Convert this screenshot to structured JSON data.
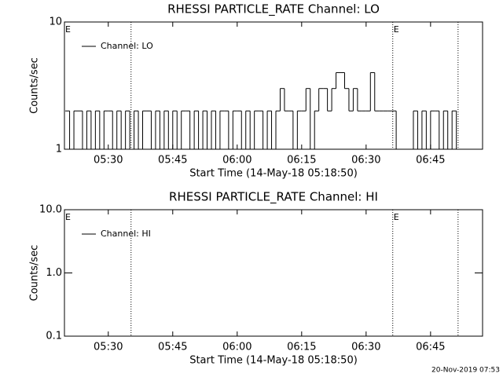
{
  "chart_data": [
    {
      "type": "line",
      "title": "RHESSI PARTICLE_RATE Channel: LO",
      "xlabel": "Start Time (14-May-18 05:18:50)",
      "ylabel": "Counts/sec",
      "log_y": true,
      "step": true,
      "legend": "upper left",
      "xlim": [
        319.8,
        417.1
      ],
      "ylim": [
        1,
        10
      ],
      "xticks": [
        {
          "value": 330,
          "label": "05:30"
        },
        {
          "value": 345,
          "label": "05:45"
        },
        {
          "value": 360,
          "label": "06:00"
        },
        {
          "value": 375,
          "label": "06:15"
        },
        {
          "value": 390,
          "label": "06:30"
        },
        {
          "value": 405,
          "label": "06:45"
        }
      ],
      "yticks": [
        1,
        10
      ],
      "vlines": [
        335.3,
        396.2,
        411.4
      ],
      "annotations": [
        {
          "text": "E",
          "x": 319.8
        },
        {
          "text": "E",
          "x": 396.2
        }
      ],
      "x": [
        320,
        321,
        322,
        323,
        324,
        325,
        326,
        327,
        328,
        329,
        330,
        331,
        332,
        333,
        334,
        335,
        336,
        337,
        338,
        339,
        340,
        341,
        342,
        343,
        344,
        345,
        346,
        347,
        348,
        349,
        350,
        351,
        352,
        353,
        354,
        355,
        356,
        357,
        358,
        359,
        360,
        361,
        362,
        363,
        364,
        365,
        366,
        367,
        368,
        369,
        370,
        371,
        372,
        373,
        374,
        375,
        376,
        377,
        378,
        379,
        380,
        381,
        382,
        383,
        384,
        385,
        386,
        387,
        388,
        389,
        390,
        391,
        392,
        393,
        394,
        395,
        396,
        397,
        398,
        399,
        400,
        401,
        402,
        403,
        404,
        405,
        406,
        407,
        408,
        409,
        410,
        411
      ],
      "series": [
        {
          "name": "Channel: LO",
          "color": "#000000",
          "values": [
            2,
            1,
            2,
            2,
            1,
            2,
            1,
            2,
            1,
            2,
            2,
            1,
            2,
            1,
            2,
            1,
            2,
            1,
            2,
            2,
            1,
            2,
            1,
            2,
            1,
            2,
            1,
            2,
            2,
            1,
            2,
            1,
            2,
            1,
            2,
            1,
            2,
            2,
            1,
            2,
            2,
            1,
            2,
            1,
            2,
            2,
            1,
            2,
            1,
            2,
            3,
            2,
            2,
            1,
            2,
            2,
            3,
            1,
            2,
            3,
            3,
            2,
            3,
            4,
            4,
            3,
            2,
            3,
            2,
            2,
            2,
            4,
            2,
            2,
            2,
            2,
            2,
            1,
            1,
            1,
            1,
            2,
            1,
            2,
            1,
            2,
            2,
            1,
            2,
            1,
            2,
            1
          ]
        }
      ]
    },
    {
      "type": "line",
      "title": "RHESSI PARTICLE_RATE Channel: HI",
      "xlabel": "Start Time (14-May-18 05:18:50)",
      "ylabel": "Counts/sec",
      "log_y": true,
      "step": true,
      "legend": "upper left",
      "xlim": [
        319.8,
        417.1
      ],
      "ylim": [
        0.1,
        10
      ],
      "xticks": [
        {
          "value": 330,
          "label": "05:30"
        },
        {
          "value": 345,
          "label": "05:45"
        },
        {
          "value": 360,
          "label": "06:00"
        },
        {
          "value": 375,
          "label": "06:15"
        },
        {
          "value": 390,
          "label": "06:30"
        },
        {
          "value": 405,
          "label": "06:45"
        }
      ],
      "yticks": [
        {
          "value": 0.1,
          "label": "0.1"
        },
        {
          "value": 1,
          "label": "1.0"
        },
        {
          "value": 10,
          "label": "10.0"
        }
      ],
      "vlines": [
        335.3,
        396.2,
        411.4
      ],
      "annotations": [
        {
          "text": "E",
          "x": 319.8
        },
        {
          "text": "E",
          "x": 396.2
        }
      ],
      "x": [],
      "series": [
        {
          "name": "Channel: HI",
          "color": "#000000",
          "values": []
        }
      ]
    }
  ],
  "footer": "20-Nov-2019 07:53"
}
